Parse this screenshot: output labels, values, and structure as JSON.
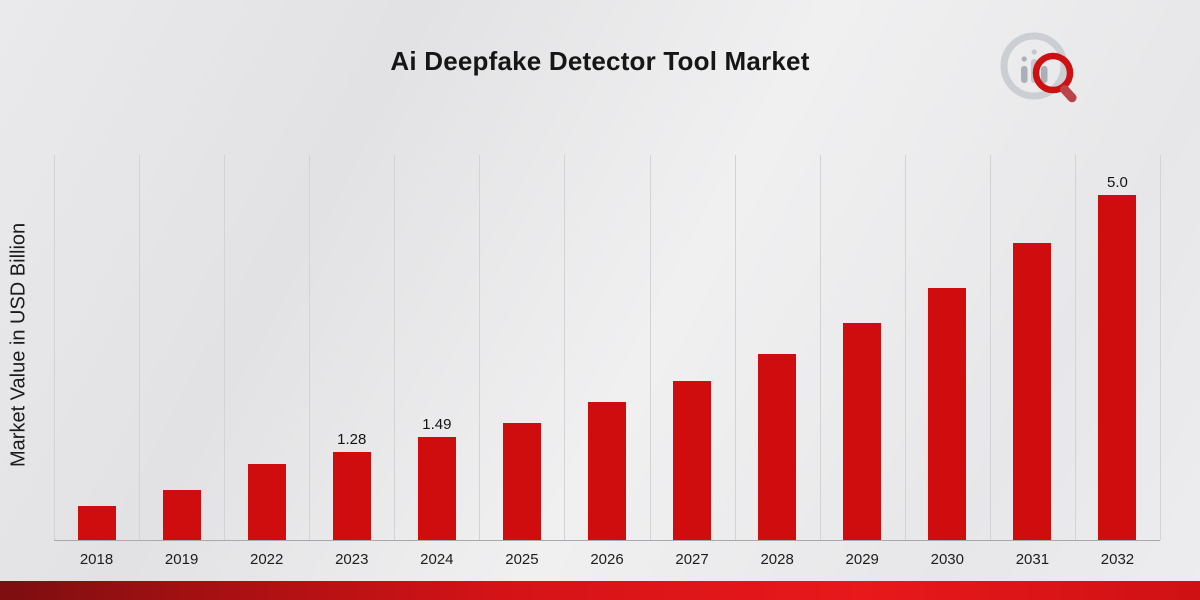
{
  "title": "Ai Deepfake Detector Tool Market",
  "y_axis_label": "Market Value in USD Billion",
  "logo_name": "market-research-future-logo",
  "colors": {
    "bar": "#cf0c0e",
    "title_text": "#161616",
    "gridline": "#d3d3d6",
    "bottom_stripe_start": "#7c0e10",
    "bottom_stripe_end": "#e8181b"
  },
  "chart_data": {
    "type": "bar",
    "title": "Ai Deepfake Detector Tool Market",
    "xlabel": "",
    "ylabel": "Market Value in USD Billion",
    "categories": [
      "2018",
      "2019",
      "2022",
      "2023",
      "2024",
      "2025",
      "2026",
      "2027",
      "2028",
      "2029",
      "2030",
      "2031",
      "2032"
    ],
    "values": [
      0.5,
      0.72,
      1.1,
      1.28,
      1.49,
      1.7,
      2.0,
      2.3,
      2.7,
      3.15,
      3.65,
      4.3,
      5.0
    ],
    "data_labels": {
      "2023": "1.28",
      "2024": "1.49",
      "2032": "5.0"
    },
    "ylim": [
      0,
      5.58
    ],
    "grid": "vertical-only",
    "legend": "none",
    "bar_color": "#cf0c0e"
  }
}
